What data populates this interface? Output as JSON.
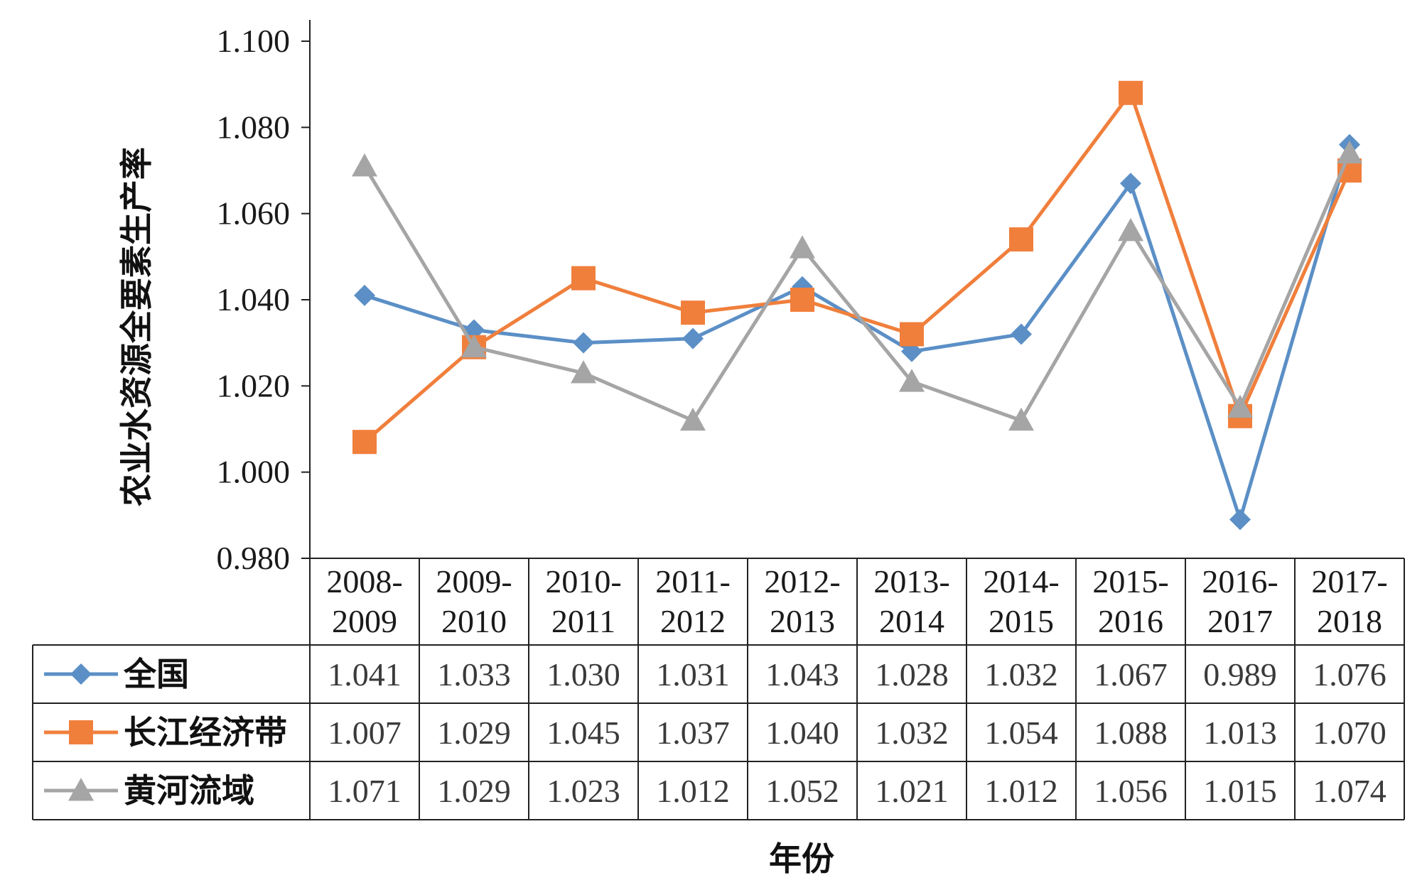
{
  "chart_data": {
    "type": "line",
    "title": "",
    "xlabel": "年份",
    "ylabel": "农业水资源全要素生产率",
    "ylim": [
      0.98,
      1.1
    ],
    "yticks": [
      "1.100",
      "1.080",
      "1.060",
      "1.040",
      "1.020",
      "1.000",
      "0.980"
    ],
    "ytick_values": [
      1.1,
      1.08,
      1.06,
      1.04,
      1.02,
      1.0,
      0.98
    ],
    "categories": [
      [
        "2008-",
        "2009"
      ],
      [
        "2009-",
        "2010"
      ],
      [
        "2010-",
        "2011"
      ],
      [
        "2011-",
        "2012"
      ],
      [
        "2012-",
        "2013"
      ],
      [
        "2013-",
        "2014"
      ],
      [
        "2014-",
        "2015"
      ],
      [
        "2015-",
        "2016"
      ],
      [
        "2016-",
        "2017"
      ],
      [
        "2017-",
        "2018"
      ]
    ],
    "series": [
      {
        "name": "全国",
        "color": "#5b8fc6",
        "marker": "diamond",
        "values": [
          1.041,
          1.033,
          1.03,
          1.031,
          1.043,
          1.028,
          1.032,
          1.067,
          0.989,
          1.076
        ],
        "labels": [
          "1.041",
          "1.033",
          "1.030",
          "1.031",
          "1.043",
          "1.028",
          "1.032",
          "1.067",
          "0.989",
          "1.076"
        ]
      },
      {
        "name": "长江经济带",
        "color": "#f07f3c",
        "marker": "square",
        "values": [
          1.007,
          1.029,
          1.045,
          1.037,
          1.04,
          1.032,
          1.054,
          1.088,
          1.013,
          1.07
        ],
        "labels": [
          "1.007",
          "1.029",
          "1.045",
          "1.037",
          "1.040",
          "1.032",
          "1.054",
          "1.088",
          "1.013",
          "1.070"
        ]
      },
      {
        "name": "黄河流域",
        "color": "#a5a5a5",
        "marker": "triangle",
        "values": [
          1.071,
          1.029,
          1.023,
          1.012,
          1.052,
          1.021,
          1.012,
          1.056,
          1.015,
          1.074
        ],
        "labels": [
          "1.071",
          "1.029",
          "1.023",
          "1.012",
          "1.052",
          "1.021",
          "1.012",
          "1.056",
          "1.015",
          "1.074"
        ]
      }
    ],
    "grid": false,
    "legend": "data-table"
  }
}
